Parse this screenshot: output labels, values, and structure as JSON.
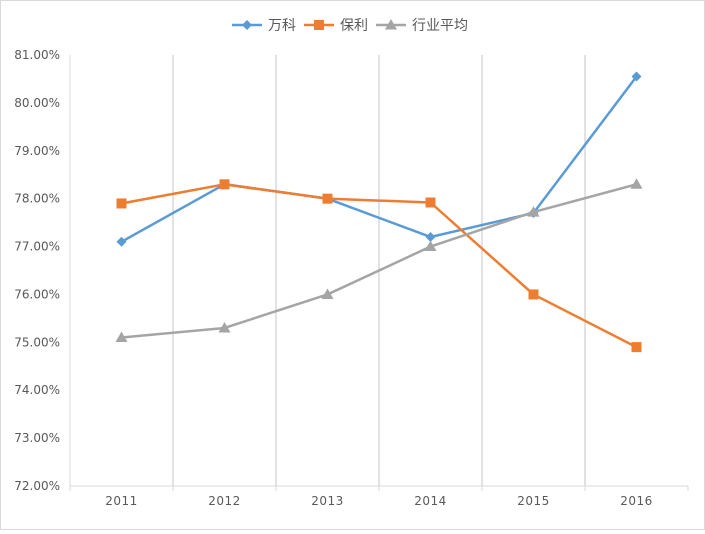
{
  "chart_data": {
    "type": "line",
    "title": "",
    "xlabel": "",
    "ylabel": "",
    "categories": [
      "2011",
      "2012",
      "2013",
      "2014",
      "2015",
      "2016"
    ],
    "ylim": [
      72,
      81
    ],
    "y_ticks": [
      "72.00%",
      "73.00%",
      "74.00%",
      "75.00%",
      "76.00%",
      "77.00%",
      "78.00%",
      "79.00%",
      "80.00%",
      "81.00%"
    ],
    "y_tick_values": [
      72,
      73,
      74,
      75,
      76,
      77,
      78,
      79,
      80,
      81
    ],
    "grid": "vertical",
    "legend_position": "top",
    "series": [
      {
        "name": "万科",
        "marker": "diamond",
        "color": "#5B9BD5",
        "values": [
          77.1,
          78.3,
          78.0,
          77.2,
          77.7,
          80.55
        ]
      },
      {
        "name": "保利",
        "marker": "square",
        "color": "#ED7D31",
        "values": [
          77.9,
          78.3,
          78.0,
          77.92,
          76.0,
          74.9
        ]
      },
      {
        "name": "行业平均",
        "marker": "triangle",
        "color": "#A5A5A5",
        "values": [
          75.1,
          75.3,
          76.0,
          77.0,
          77.72,
          78.3
        ]
      }
    ]
  }
}
